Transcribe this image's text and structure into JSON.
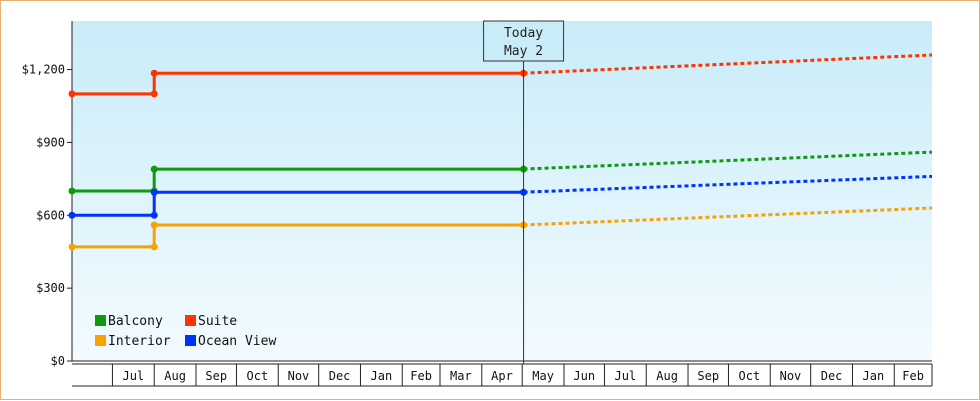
{
  "chart_data": {
    "type": "line",
    "title": "",
    "xlabel": "",
    "ylabel": "",
    "ylim": [
      0,
      1400
    ],
    "yticks": [
      {
        "value": 0,
        "label": "$0"
      },
      {
        "value": 300,
        "label": "$300"
      },
      {
        "value": 600,
        "label": "$600"
      },
      {
        "value": 900,
        "label": "$900"
      },
      {
        "value": 1200,
        "label": "$1,200"
      }
    ],
    "months": [
      "Jul",
      "Aug",
      "Sep",
      "Oct",
      "Nov",
      "Dec",
      "Jan",
      "Feb",
      "Mar",
      "Apr",
      "May",
      "Jun",
      "Jul",
      "Aug",
      "Sep",
      "Oct",
      "Nov",
      "Dec",
      "Jan",
      "Feb"
    ],
    "x_domain": [
      "2013-06-01",
      "2015-03-01"
    ],
    "today": {
      "label_line1": "Today",
      "label_line2": "May 2",
      "date": "2014-05-02"
    },
    "grid": false,
    "legend_position": "bottom-left",
    "series": [
      {
        "name": "Balcony",
        "color": "#119911",
        "history": [
          [
            "2013-06-01",
            700
          ],
          [
            "2013-08-01",
            700
          ],
          [
            "2013-08-01",
            790
          ],
          [
            "2014-05-02",
            790
          ]
        ],
        "forecast": [
          [
            "2014-05-02",
            790
          ],
          [
            "2015-03-01",
            860
          ]
        ]
      },
      {
        "name": "Interior",
        "color": "#f5a300",
        "history": [
          [
            "2013-06-01",
            470
          ],
          [
            "2013-08-01",
            470
          ],
          [
            "2013-08-01",
            560
          ],
          [
            "2014-05-02",
            560
          ]
        ],
        "forecast": [
          [
            "2014-05-02",
            560
          ],
          [
            "2015-03-01",
            630
          ]
        ]
      },
      {
        "name": "Suite",
        "color": "#ff3300",
        "history": [
          [
            "2013-06-01",
            1100
          ],
          [
            "2013-08-01",
            1100
          ],
          [
            "2013-08-01",
            1185
          ],
          [
            "2014-05-02",
            1185
          ]
        ],
        "forecast": [
          [
            "2014-05-02",
            1185
          ],
          [
            "2015-03-01",
            1260
          ]
        ]
      },
      {
        "name": "Ocean View",
        "color": "#0033ff",
        "history": [
          [
            "2013-06-01",
            600
          ],
          [
            "2013-08-01",
            600
          ],
          [
            "2013-08-01",
            695
          ],
          [
            "2014-05-02",
            695
          ]
        ],
        "forecast": [
          [
            "2014-05-02",
            695
          ],
          [
            "2015-03-01",
            760
          ]
        ]
      }
    ]
  }
}
